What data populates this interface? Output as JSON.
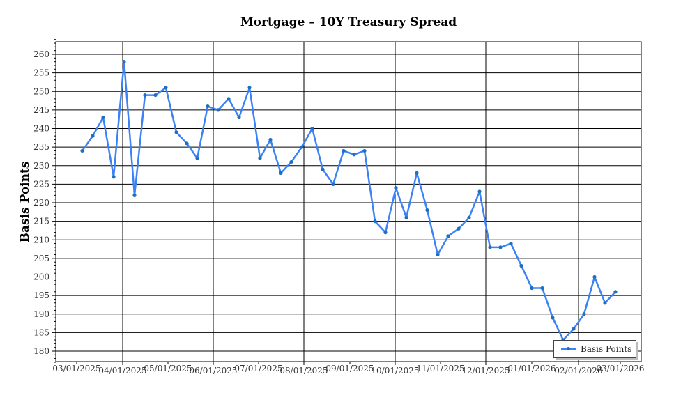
{
  "chart": {
    "title": "Mortgage – 10Y Treasury Spread",
    "ylabel": "Basis Points",
    "legend_label": "Basis Points",
    "line_color": "#3b82f6",
    "marker_color": "#1f6fbf"
  },
  "chart_data": {
    "type": "line",
    "title": "Mortgage – 10Y Treasury Spread",
    "xlabel": "",
    "ylabel": "Basis Points",
    "ylim": [
      177,
      264
    ],
    "yticks": [
      180,
      185,
      190,
      195,
      200,
      205,
      210,
      215,
      220,
      225,
      230,
      235,
      240,
      245,
      250,
      255,
      260
    ],
    "xtick_labels": [
      "03/01/2025",
      "04/01/2025",
      "05/01/2025",
      "06/01/2025",
      "07/01/2025",
      "08/01/2025",
      "09/01/2025",
      "10/01/2025",
      "11/01/2025",
      "12/01/2025",
      "01/01/2026",
      "02/01/2026",
      "03/01/2026"
    ],
    "grid": true,
    "legend_position": "lower right",
    "series": [
      {
        "name": "Basis Points",
        "values": [
          234,
          238,
          243,
          227,
          258,
          222,
          249,
          249,
          251,
          239,
          236,
          232,
          246,
          245,
          248,
          243,
          251,
          232,
          237,
          228,
          231,
          235,
          240,
          229,
          225,
          234,
          233,
          234,
          215,
          212,
          224,
          216,
          228,
          218,
          206,
          211,
          213,
          216,
          223,
          208,
          208,
          209,
          203,
          197,
          197,
          189,
          183,
          186,
          190,
          200,
          193,
          196
        ]
      }
    ]
  }
}
